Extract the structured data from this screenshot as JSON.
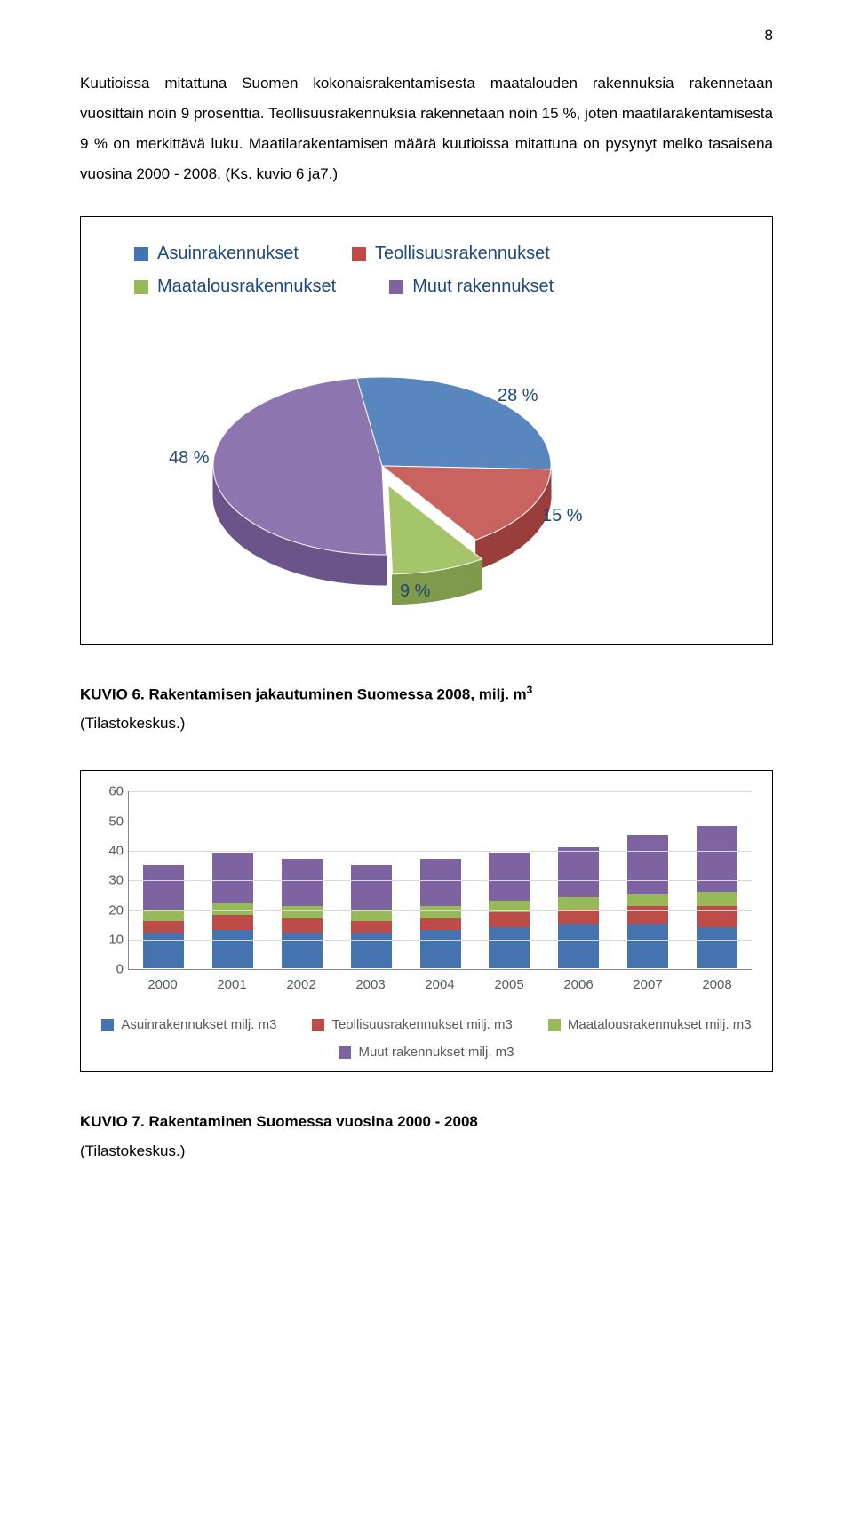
{
  "page_number": "8",
  "body_text": "Kuutioissa mitattuna Suomen kokonaisrakentamisesta maatalouden rakennuksia rakennetaan vuosittain noin 9 prosenttia. Teollisuusrakennuksia rakennetaan noin 15 %, joten maatilarakentamisesta 9 % on merkittävä luku. Maatilarakentamisen määrä kuutioissa mitattuna on pysynyt melko tasaisena vuosina 2000 - 2008. (Ks. kuvio 6 ja7.)",
  "pie_chart": {
    "legend": [
      {
        "label": "Asuinrakennukset",
        "color": "#4473b0"
      },
      {
        "label": "Teollisuusrakennukset",
        "color": "#bd4c49"
      },
      {
        "label": "Maatalousrakennukset",
        "color": "#98b957"
      },
      {
        "label": "Muut rakennukset",
        "color": "#7d63a1"
      }
    ],
    "slices": [
      {
        "label": "28 %",
        "value": 28,
        "color_top": "#5a86bf",
        "color_side": "#3b5f8e"
      },
      {
        "label": "15 %",
        "value": 15,
        "color_top": "#c9635f",
        "color_side": "#9a3e3b"
      },
      {
        "label": "9 %",
        "value": 9,
        "color_top": "#a6c56a",
        "color_side": "#7e9a4a"
      },
      {
        "label": "48 %",
        "value": 48,
        "color_top": "#8d76af",
        "color_side": "#6a5489"
      }
    ],
    "label_color": "#1f497d",
    "label_fontsize": 20
  },
  "caption_6_bold": "KUVIO 6. Rakentamisen jakautuminen Suomessa 2008, milj. m",
  "caption_6_sup": "3",
  "caption_6_rest": "(Tilastokeskus.)",
  "bar_chart": {
    "y_max": 60,
    "y_tick_step": 10,
    "y_ticks": [
      0,
      10,
      20,
      30,
      40,
      50,
      60
    ],
    "grid_color": "#d9d9d9",
    "axis_text_color": "#5a5a5a",
    "categories": [
      "2000",
      "2001",
      "2002",
      "2003",
      "2004",
      "2005",
      "2006",
      "2007",
      "2008"
    ],
    "series": [
      {
        "label": "Asuinrakennukset milj. m3",
        "color": "#4473b0"
      },
      {
        "label": "Teollisuusrakennukset milj. m3",
        "color": "#bd4c49"
      },
      {
        "label": "Maatalousrakennukset milj. m3",
        "color": "#98b957"
      },
      {
        "label": "Muut rakennukset milj. m3",
        "color": "#7d63a1"
      }
    ],
    "stacks": [
      [
        12,
        4,
        4,
        15
      ],
      [
        13,
        5,
        4,
        17
      ],
      [
        12,
        5,
        4,
        16
      ],
      [
        12,
        4,
        4,
        15
      ],
      [
        13,
        4,
        4,
        16
      ],
      [
        14,
        5,
        4,
        16
      ],
      [
        15,
        5,
        4,
        17
      ],
      [
        15,
        6,
        4,
        20
      ],
      [
        14,
        7,
        5,
        22
      ]
    ]
  },
  "caption_7_bold": "KUVIO 7. Rakentaminen Suomessa vuosina 2000 - 2008",
  "caption_7_rest": "(Tilastokeskus.)"
}
